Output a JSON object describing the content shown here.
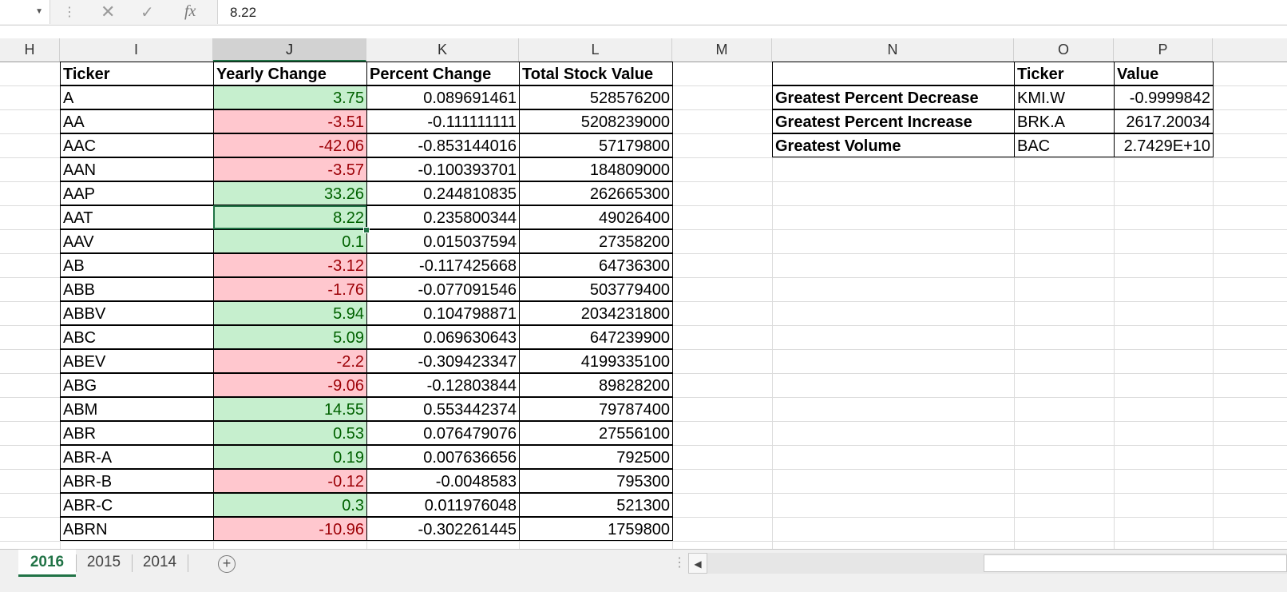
{
  "formula_bar": {
    "name_box": "",
    "value": "8.22",
    "fx_label": "fx"
  },
  "columns": [
    "H",
    "I",
    "J",
    "K",
    "L",
    "M",
    "N",
    "O",
    "P"
  ],
  "table": {
    "headers": [
      "Ticker",
      "Yearly Change",
      "Percent Change",
      "Total Stock Value"
    ],
    "rows": [
      {
        "ticker": "A",
        "yearly": "3.75",
        "percent": "0.089691461",
        "total": "528576200",
        "up": true
      },
      {
        "ticker": "AA",
        "yearly": "-3.51",
        "percent": "-0.111111111",
        "total": "5208239000",
        "up": false
      },
      {
        "ticker": "AAC",
        "yearly": "-42.06",
        "percent": "-0.853144016",
        "total": "57179800",
        "up": false
      },
      {
        "ticker": "AAN",
        "yearly": "-3.57",
        "percent": "-0.100393701",
        "total": "184809000",
        "up": false
      },
      {
        "ticker": "AAP",
        "yearly": "33.26",
        "percent": "0.244810835",
        "total": "262665300",
        "up": true
      },
      {
        "ticker": "AAT",
        "yearly": "8.22",
        "percent": "0.235800344",
        "total": "49026400",
        "up": true
      },
      {
        "ticker": "AAV",
        "yearly": "0.1",
        "percent": "0.015037594",
        "total": "27358200",
        "up": true
      },
      {
        "ticker": "AB",
        "yearly": "-3.12",
        "percent": "-0.117425668",
        "total": "64736300",
        "up": false
      },
      {
        "ticker": "ABB",
        "yearly": "-1.76",
        "percent": "-0.077091546",
        "total": "503779400",
        "up": false
      },
      {
        "ticker": "ABBV",
        "yearly": "5.94",
        "percent": "0.104798871",
        "total": "2034231800",
        "up": true
      },
      {
        "ticker": "ABC",
        "yearly": "5.09",
        "percent": "0.069630643",
        "total": "647239900",
        "up": true
      },
      {
        "ticker": "ABEV",
        "yearly": "-2.2",
        "percent": "-0.309423347",
        "total": "4199335100",
        "up": false
      },
      {
        "ticker": "ABG",
        "yearly": "-9.06",
        "percent": "-0.12803844",
        "total": "89828200",
        "up": false
      },
      {
        "ticker": "ABM",
        "yearly": "14.55",
        "percent": "0.553442374",
        "total": "79787400",
        "up": true
      },
      {
        "ticker": "ABR",
        "yearly": "0.53",
        "percent": "0.076479076",
        "total": "27556100",
        "up": true
      },
      {
        "ticker": "ABR-A",
        "yearly": "0.19",
        "percent": "0.007636656",
        "total": "792500",
        "up": true
      },
      {
        "ticker": "ABR-B",
        "yearly": "-0.12",
        "percent": "-0.0048583",
        "total": "795300",
        "up": false
      },
      {
        "ticker": "ABR-C",
        "yearly": "0.3",
        "percent": "0.011976048",
        "total": "521300",
        "up": true
      },
      {
        "ticker": "ABRN",
        "yearly": "-10.96",
        "percent": "-0.302261445",
        "total": "1759800",
        "up": false
      }
    ]
  },
  "summary": {
    "headers": [
      "",
      "Ticker",
      "Value"
    ],
    "rows": [
      {
        "label": "Greatest Percent Decrease",
        "ticker": "KMI.W",
        "value": "-0.9999842"
      },
      {
        "label": "Greatest Percent Increase",
        "ticker": "BRK.A",
        "value": "2617.20034"
      },
      {
        "label": "Greatest Volume",
        "ticker": "BAC",
        "value": "2.7429E+10"
      }
    ]
  },
  "sheets": [
    "2016",
    "2015",
    "2014"
  ],
  "active_sheet": "2016",
  "colors": {
    "positive_fill": "#c6efce",
    "negative_fill": "#ffc7ce",
    "accent": "#217346"
  }
}
